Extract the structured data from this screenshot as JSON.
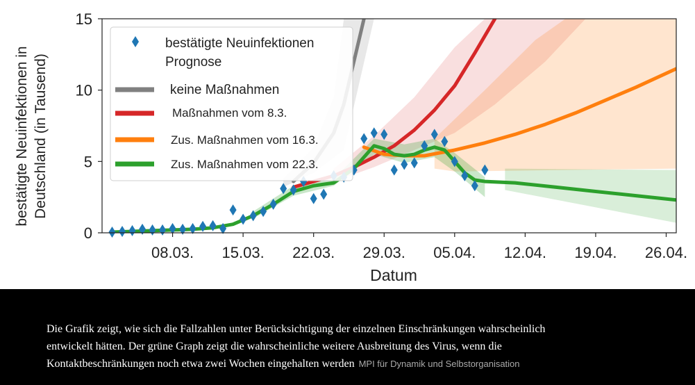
{
  "chart_data": {
    "type": "line",
    "xlabel": "Datum",
    "ylabel_line1": "bestätigte Neuinfektionen in",
    "ylabel_line2": "Deutschland (in Tausend)",
    "ylim": [
      0,
      15
    ],
    "yticks": [
      "0",
      "5",
      "10",
      "15"
    ],
    "xticks": [
      "08.03.",
      "15.03.",
      "22.03.",
      "29.03.",
      "05.04.",
      "12.04.",
      "19.04.",
      "26.04."
    ],
    "legend_placement": "top-left",
    "legend": {
      "observed": "bestätigte Neuinfektionen",
      "forecast_header": "Prognose",
      "none": "keine Maßnahmen",
      "m8": "Maßnahmen vom 8.3.",
      "m16": "Zus. Maßnahmen vom 16.3.",
      "m22": "Zus. Maßnahmen vom 22.3."
    },
    "colors": {
      "observed": "#1f77b4",
      "none": "#808080",
      "m8": "#d62728",
      "m16": "#ff7f0e",
      "m22": "#2ca02c"
    },
    "observed": {
      "x": [
        "02.03.",
        "03.03.",
        "04.03.",
        "05.03.",
        "06.03.",
        "07.03.",
        "08.03.",
        "09.03.",
        "10.03.",
        "11.03.",
        "12.03.",
        "13.03.",
        "14.03.",
        "15.03.",
        "16.03.",
        "17.03.",
        "18.03.",
        "19.03.",
        "20.03.",
        "21.03.",
        "22.03.",
        "23.03.",
        "24.03.",
        "25.03.",
        "26.03.",
        "27.03.",
        "28.03.",
        "29.03.",
        "30.03.",
        "31.03.",
        "01.04.",
        "02.04.",
        "03.04.",
        "04.04.",
        "05.04.",
        "06.04.",
        "07.04.",
        "08.04."
      ],
      "y": [
        0.05,
        0.1,
        0.15,
        0.25,
        0.2,
        0.2,
        0.3,
        0.25,
        0.3,
        0.45,
        0.5,
        0.3,
        1.6,
        0.95,
        1.2,
        1.5,
        2.0,
        3.1,
        3.0,
        3.6,
        2.4,
        2.7,
        4.0,
        3.9,
        4.4,
        6.6,
        7.0,
        6.9,
        4.4,
        4.8,
        4.9,
        6.1,
        6.9,
        6.4,
        5.0,
        4.0,
        3.3,
        4.4
      ]
    },
    "series": [
      {
        "name": "keine Maßnahmen",
        "x": [
          "20.03.",
          "22.03.",
          "24.03.",
          "25.03.",
          "27.03."
        ],
        "y": [
          3.6,
          4.9,
          7.0,
          9.0,
          15.0
        ]
      },
      {
        "name": "Maßnahmen vom 8.3.",
        "x": [
          "20.03.",
          "22.03.",
          "24.03.",
          "26.03.",
          "28.03.",
          "30.03.",
          "01.04.",
          "03.04.",
          "05.04.",
          "07.04.",
          "09.04."
        ],
        "y": [
          3.2,
          3.6,
          4.0,
          4.6,
          5.3,
          6.1,
          7.2,
          8.6,
          10.3,
          12.6,
          15.0
        ]
      },
      {
        "name": "Zus. Maßnahmen vom 16.3.",
        "x": [
          "27.03.",
          "29.03.",
          "31.03.",
          "02.04.",
          "05.04.",
          "08.04.",
          "11.04.",
          "14.04.",
          "17.04.",
          "20.04.",
          "23.04.",
          "27.04."
        ],
        "y": [
          6.0,
          5.5,
          5.4,
          5.4,
          5.8,
          6.3,
          6.9,
          7.6,
          8.4,
          9.3,
          10.2,
          11.5
        ]
      },
      {
        "name": "Zus. Maßnahmen vom 22.3.",
        "x": [
          "02.03.",
          "04.03.",
          "06.03.",
          "08.03.",
          "10.03.",
          "12.03.",
          "14.03.",
          "16.03.",
          "18.03.",
          "20.03.",
          "22.03.",
          "24.03.",
          "26.03.",
          "28.03.",
          "29.03.",
          "30.03.",
          "31.03.",
          "01.04.",
          "02.04.",
          "03.04.",
          "04.04.",
          "05.04.",
          "06.04.",
          "07.04.",
          "08.04.",
          "11.04.",
          "15.04.",
          "19.04.",
          "23.04.",
          "27.04."
        ],
        "y": [
          0.05,
          0.1,
          0.15,
          0.2,
          0.25,
          0.35,
          0.6,
          1.2,
          2.0,
          2.9,
          3.3,
          3.5,
          4.5,
          6.1,
          5.9,
          5.5,
          5.4,
          5.5,
          5.8,
          6.0,
          5.8,
          5.0,
          4.2,
          3.7,
          3.6,
          3.5,
          3.2,
          2.9,
          2.6,
          2.3
        ]
      }
    ]
  },
  "caption": {
    "text": "Die Grafik zeigt, wie sich die Fallzahlen unter Berücksichtigung der einzelnen Einschränkungen wahrscheinlich entwickelt hätten. Der grüne Graph zeigt die wahrscheinliche weitere Ausbreitung des Virus, wenn die Kontaktbeschränkungen noch etwa zwei Wochen eingehalten werden",
    "credit": "MPI für Dynamik und Selbstorganisation"
  }
}
